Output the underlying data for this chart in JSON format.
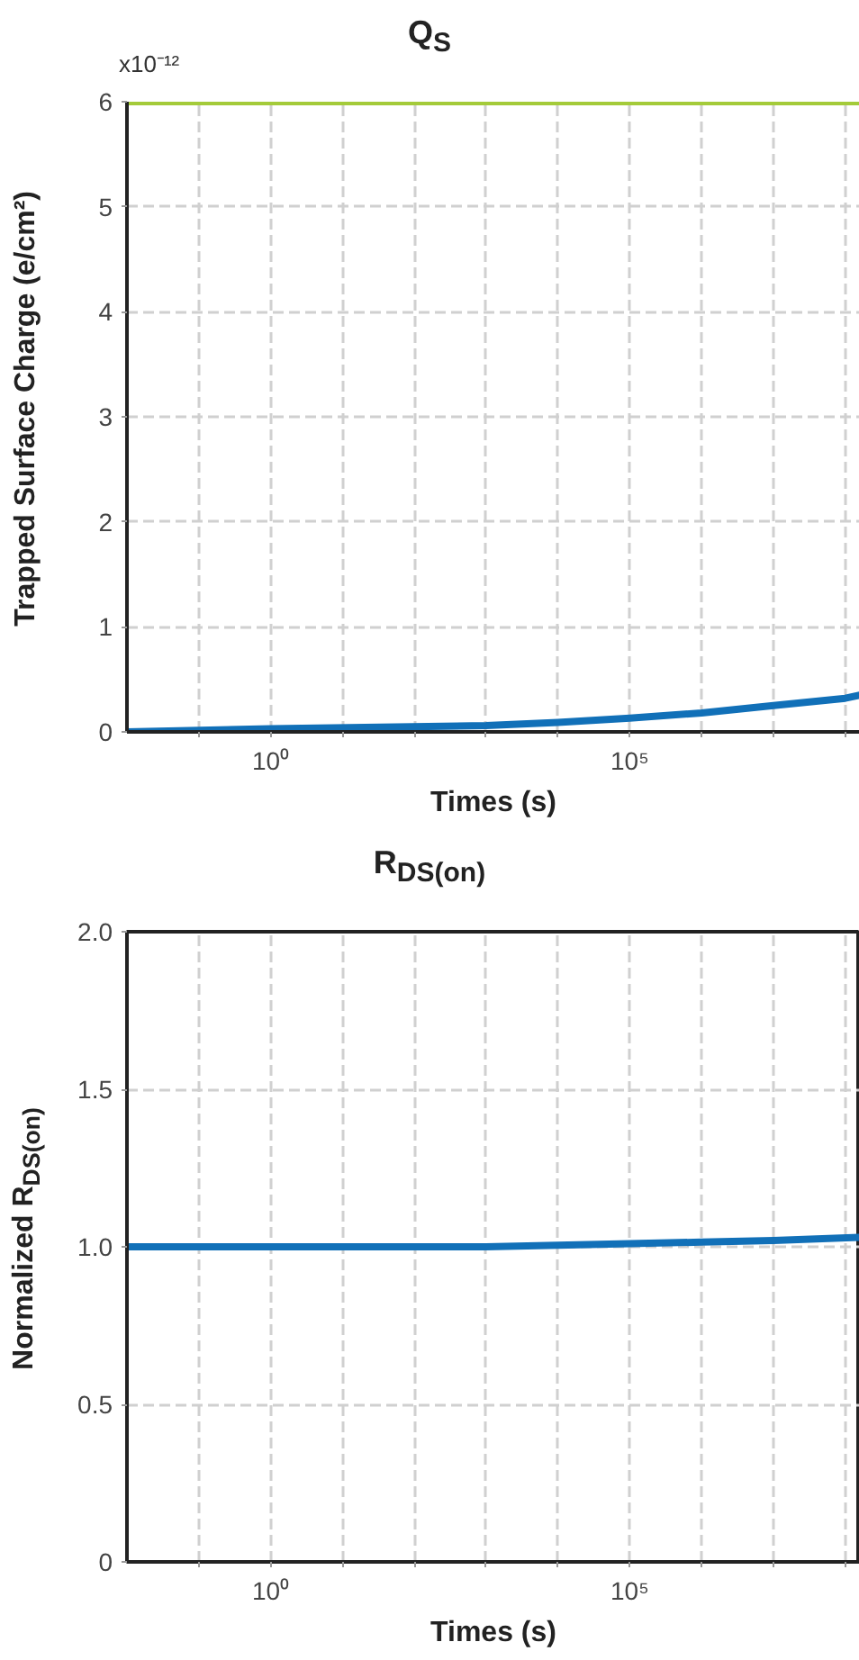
{
  "chart_data": [
    {
      "type": "line",
      "title": "Q$_{S}$",
      "xlabel": "Times (s)",
      "ylabel": "Trapped Surface Charge (e/cm²)",
      "annotations": [
        "x10⁻¹²"
      ],
      "log": "x",
      "grid": true,
      "line_style": "solid",
      "marker": "none",
      "xlim": [
        0.01,
        160000000.0
      ],
      "ylim": [
        0,
        6
      ],
      "xticks": [
        {
          "value": 0.1,
          "label": null
        },
        {
          "value": 1,
          "label": "10⁰"
        },
        {
          "value": 10,
          "label": null
        },
        {
          "value": 100,
          "label": null
        },
        {
          "value": 1000,
          "label": null
        },
        {
          "value": 10000,
          "label": null
        },
        {
          "value": 100000,
          "label": "10⁵"
        },
        {
          "value": 1000000,
          "label": null
        },
        {
          "value": 10000000,
          "label": null
        },
        {
          "value": 100000000,
          "label": null
        }
      ],
      "yticks": [
        0,
        1,
        2,
        3,
        4,
        5,
        6
      ],
      "series": [
        {
          "color": "#a4cb3a",
          "x": [
            0.01,
            160000000.0
          ],
          "values": [
            6,
            6
          ]
        },
        {
          "color": "#1170b8",
          "x": [
            0.01,
            1,
            1000,
            10000,
            100000,
            1000000,
            10000000,
            100000000,
            160000000.0
          ],
          "values": [
            0,
            0.03,
            0.06,
            0.09,
            0.13,
            0.18,
            0.25,
            0.32,
            0.35
          ]
        }
      ]
    },
    {
      "type": "line",
      "title": "R$_{DS(on)}$",
      "xlabel": "Times (s)",
      "ylabel": "Normalized R$_{DS(on)}$",
      "log": "x",
      "grid": true,
      "line_style": "solid",
      "marker": "none",
      "xlim": [
        0.01,
        160000000.0
      ],
      "ylim": [
        0,
        2.0
      ],
      "xticks": [
        {
          "value": 0.1,
          "label": null
        },
        {
          "value": 1,
          "label": "10⁰"
        },
        {
          "value": 10,
          "label": null
        },
        {
          "value": 100,
          "label": null
        },
        {
          "value": 1000,
          "label": null
        },
        {
          "value": 10000,
          "label": null
        },
        {
          "value": 100000,
          "label": "10⁵"
        },
        {
          "value": 1000000,
          "label": null
        },
        {
          "value": 10000000,
          "label": null
        },
        {
          "value": 100000000,
          "label": null
        }
      ],
      "yticks": [
        0,
        {
          "value": 0.5,
          "label": "0.5"
        },
        {
          "value": 1.0,
          "label": "1.0"
        },
        {
          "value": 1.5,
          "label": "1.5"
        },
        {
          "value": 2.0,
          "label": "2.0"
        }
      ],
      "series": [
        {
          "color": "#1170b8",
          "x": [
            0.01,
            1,
            1000,
            10000,
            100000,
            1000000,
            10000000,
            160000000.0
          ],
          "values": [
            1.0,
            1.0,
            1.0,
            1.005,
            1.01,
            1.015,
            1.02,
            1.03
          ]
        }
      ]
    }
  ]
}
